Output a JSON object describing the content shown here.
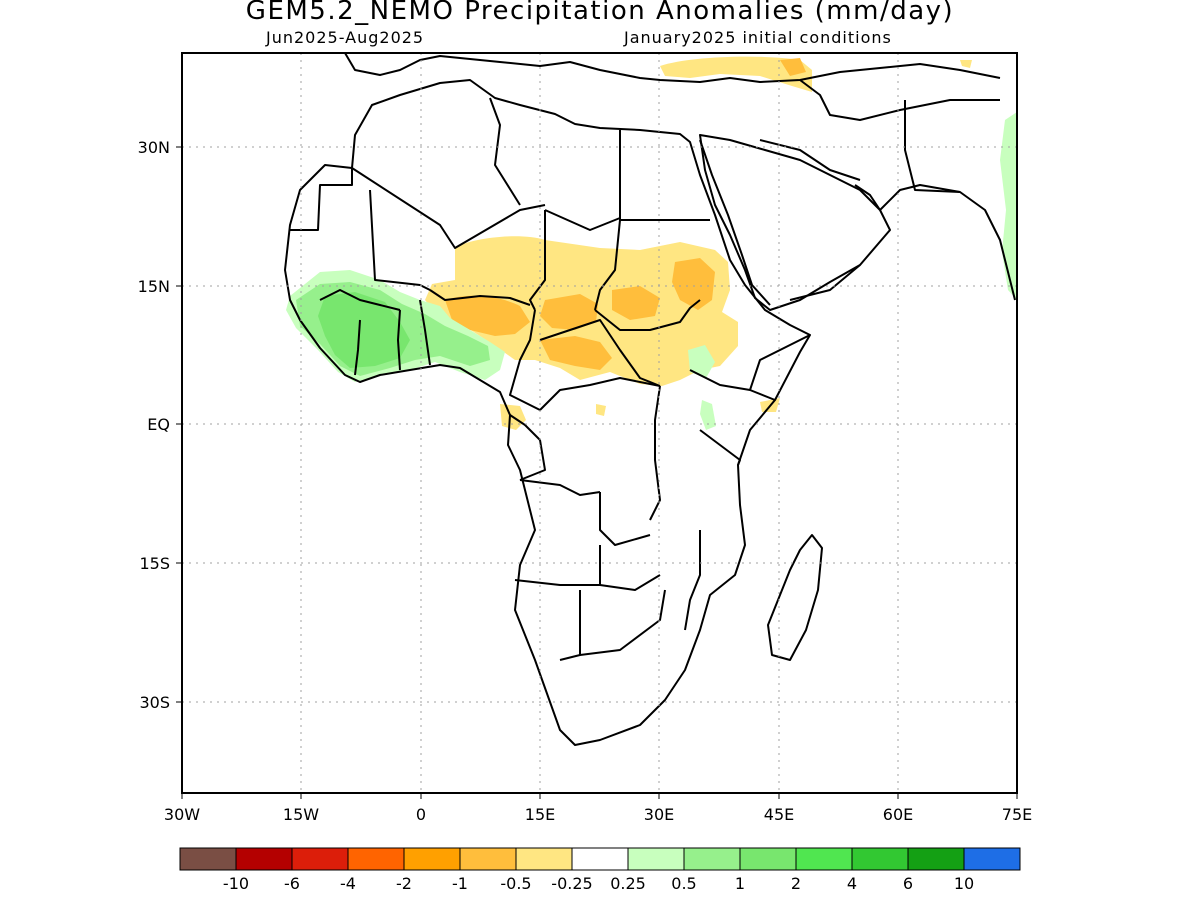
{
  "title": "GEM5.2_NEMO Precipitation Anomalies (mm/day)",
  "period": "Jun2025-Aug2025",
  "initial_conditions": "January2025 initial conditions",
  "lat_labels": [
    "30N",
    "15N",
    "EQ",
    "15S",
    "30S"
  ],
  "lon_labels": [
    "30W",
    "15W",
    "0",
    "15E",
    "30E",
    "45E",
    "60E",
    "75E"
  ],
  "colorbar": {
    "colors": [
      "#7a4e44",
      "#b40000",
      "#dc1e0a",
      "#ff6400",
      "#ffa000",
      "#ffbe3c",
      "#ffe682",
      "#ffffff",
      "#c8ffbe",
      "#96f08c",
      "#78e66e",
      "#50e650",
      "#32c832",
      "#14a014",
      "#1e6ee6"
    ],
    "labels": [
      "-10",
      "-6",
      "-4",
      "-2",
      "-1",
      "-0.5",
      "-0.25",
      "0.25",
      "0.5",
      "1",
      "2",
      "4",
      "6",
      "10"
    ]
  },
  "colors": {
    "dry_weak": "#ffe682",
    "dry_moderate": "#ffbe3c",
    "wet_weak": "#c8ffbe",
    "wet_moderate": "#96f08c",
    "wet_strong": "#78e66e"
  }
}
